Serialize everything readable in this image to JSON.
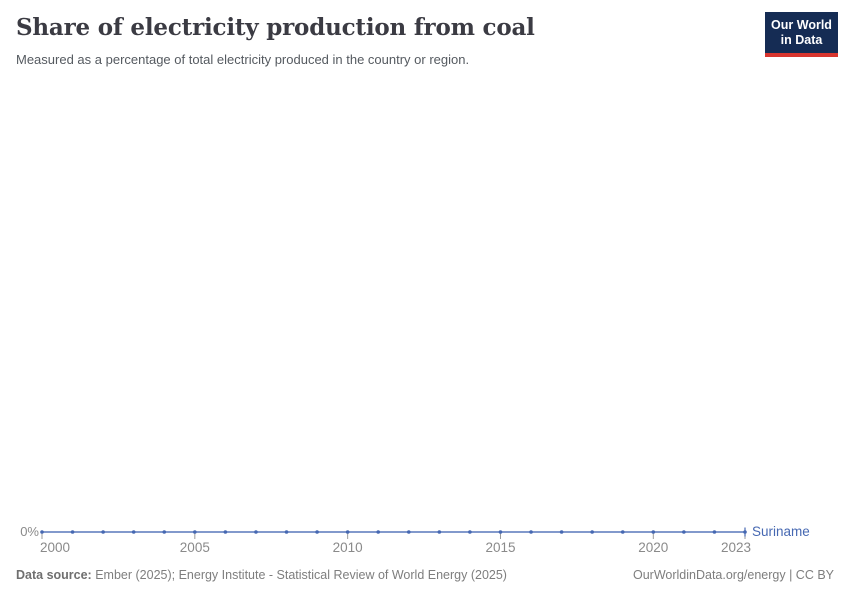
{
  "header": {
    "title": "Share of electricity production from coal",
    "subtitle": "Measured as a percentage of total electricity produced in the country or region."
  },
  "logo": {
    "line1": "Our World",
    "line2": "in Data"
  },
  "chart_data": {
    "type": "line",
    "title": "Share of electricity production from coal",
    "subtitle": "Measured as a percentage of total electricity produced in the country or region.",
    "unit": "%",
    "x": [
      2000,
      2001,
      2002,
      2003,
      2004,
      2005,
      2006,
      2007,
      2008,
      2009,
      2010,
      2011,
      2012,
      2013,
      2014,
      2015,
      2016,
      2017,
      2018,
      2019,
      2020,
      2021,
      2022,
      2023
    ],
    "series": [
      {
        "name": "Suriname",
        "color": "#4668b2",
        "values": [
          0,
          0,
          0,
          0,
          0,
          0,
          0,
          0,
          0,
          0,
          0,
          0,
          0,
          0,
          0,
          0,
          0,
          0,
          0,
          0,
          0,
          0,
          0,
          0
        ]
      }
    ],
    "x_ticks": [
      "2000",
      "2005",
      "2010",
      "2015",
      "2020",
      "2023"
    ],
    "y_ticks": [
      "0%"
    ],
    "ylim": [
      0,
      100
    ],
    "grid": false,
    "legend_position": "line-end"
  },
  "footer": {
    "datasource_label": "Data source:",
    "datasource_text": " Ember (2025); Energy Institute - Statistical Review of World Energy (2025)",
    "link": "OurWorldinData.org/energy | CC BY"
  },
  "colors": {
    "line": "#4668b2",
    "axis_text": "#8a8a8a",
    "tick": "#9a9a9a",
    "logo_bg": "#152c54",
    "logo_accent": "#d8352f",
    "title_text": "#3b3b43"
  }
}
